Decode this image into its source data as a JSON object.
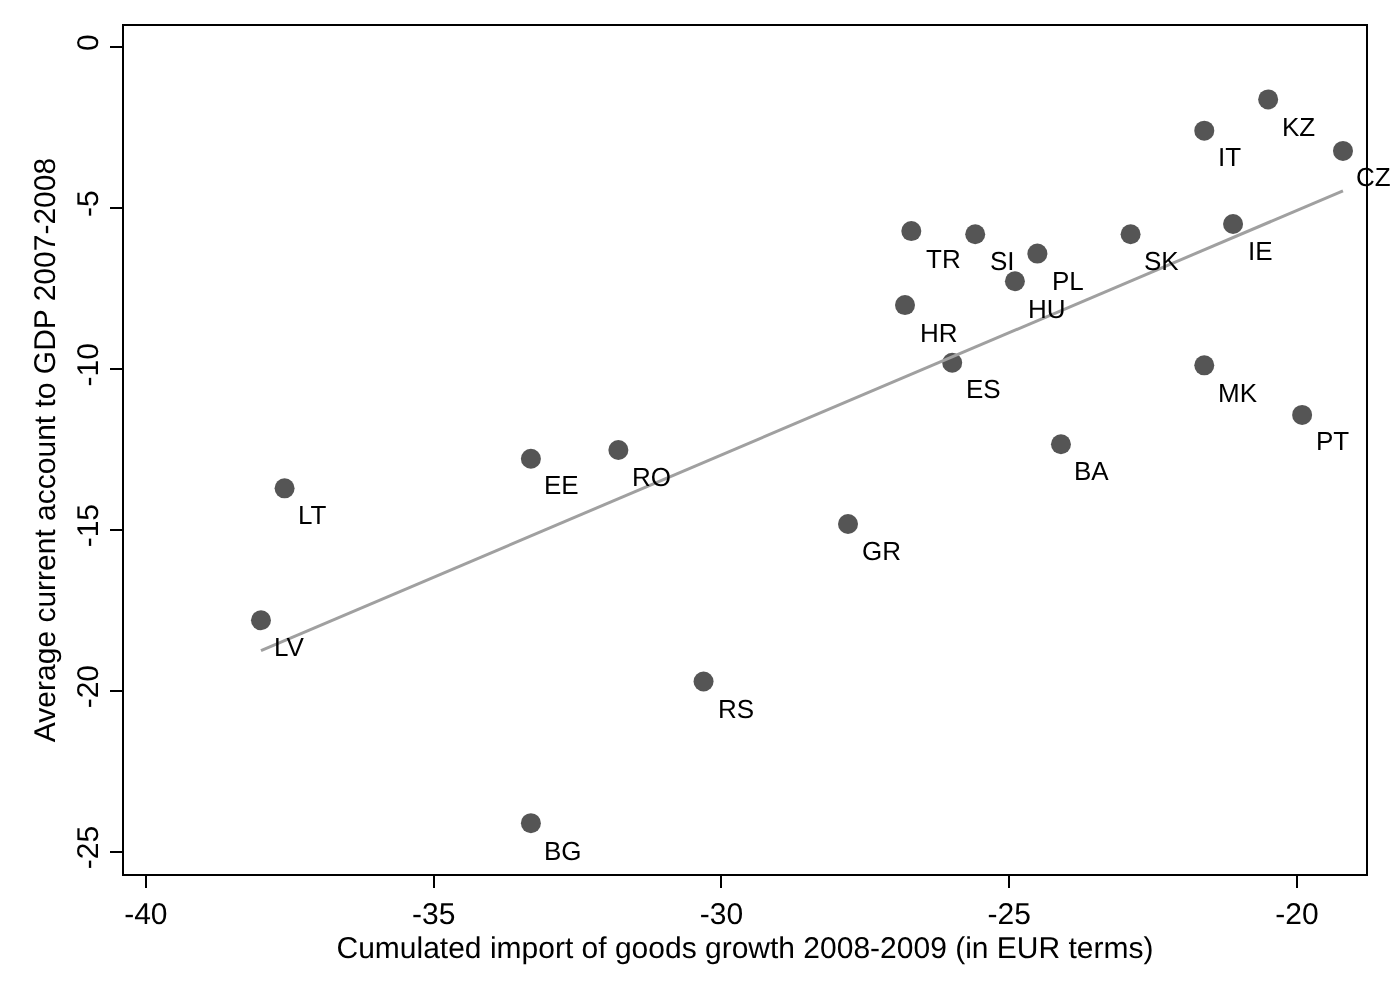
{
  "chart_data": {
    "type": "scatter",
    "xlabel": "Cumulated import of goods growth 2008-2009 (in EUR terms)",
    "ylabel": "Average current account to GDP 2007-2008",
    "xlim": [
      -40.38,
      -18.8
    ],
    "ylim": [
      -25.68,
      0.66
    ],
    "xticks": [
      -40,
      -35,
      -30,
      -25,
      -20
    ],
    "yticks": [
      -25,
      -20,
      -15,
      -10,
      -5,
      0
    ],
    "series": [
      {
        "marker": "circle",
        "color": "#555555",
        "x": [
          -38.0,
          -37.59,
          -33.31,
          -31.79,
          -33.31,
          -30.31,
          -27.8,
          -26.7,
          -26.81,
          -25.59,
          -25.99,
          -24.51,
          -24.9,
          -24.1,
          -22.89,
          -21.61,
          -21.61,
          -21.11,
          -20.5,
          -19.91,
          -19.2
        ],
        "values": [
          -17.8,
          -13.7,
          -12.78,
          -12.51,
          -24.1,
          -19.7,
          -14.81,
          -5.71,
          -8.01,
          -5.81,
          -9.8,
          -6.41,
          -7.27,
          -12.33,
          -5.81,
          -2.59,
          -9.88,
          -5.49,
          -1.62,
          -11.42,
          -3.22
        ]
      },
      {
        "type": "line",
        "marker": "none",
        "color": "#a0a0a0",
        "x": [
          -38.0,
          -19.2
        ],
        "values": [
          -18.74,
          -4.46
        ]
      }
    ],
    "annotations": [
      {
        "text": "LV",
        "x": -38.0,
        "y": -17.8
      },
      {
        "text": "LT",
        "x": -37.59,
        "y": -13.7
      },
      {
        "text": "EE",
        "x": -33.31,
        "y": -12.78
      },
      {
        "text": "RO",
        "x": -31.79,
        "y": -12.51
      },
      {
        "text": "BG",
        "x": -33.31,
        "y": -24.1
      },
      {
        "text": "RS",
        "x": -30.31,
        "y": -19.7
      },
      {
        "text": "GR",
        "x": -27.8,
        "y": -14.81
      },
      {
        "text": "TR",
        "x": -26.7,
        "y": -5.71
      },
      {
        "text": "HR",
        "x": -26.81,
        "y": -8.01
      },
      {
        "text": "SI",
        "x": -25.59,
        "y": -5.81
      },
      {
        "text": "ES",
        "x": -25.99,
        "y": -9.8
      },
      {
        "text": "PL",
        "x": -24.51,
        "y": -6.41
      },
      {
        "text": "HU",
        "x": -24.9,
        "y": -7.27
      },
      {
        "text": "BA",
        "x": -24.1,
        "y": -12.33
      },
      {
        "text": "SK",
        "x": -22.89,
        "y": -5.81
      },
      {
        "text": "IT",
        "x": -21.61,
        "y": -2.59
      },
      {
        "text": "MK",
        "x": -21.61,
        "y": -9.88
      },
      {
        "text": "IE",
        "x": -21.11,
        "y": -5.49
      },
      {
        "text": "KZ",
        "x": -20.5,
        "y": -1.62
      },
      {
        "text": "PT",
        "x": -19.91,
        "y": -11.42
      },
      {
        "text": "CZ",
        "x": -19.2,
        "y": -3.22
      }
    ]
  }
}
